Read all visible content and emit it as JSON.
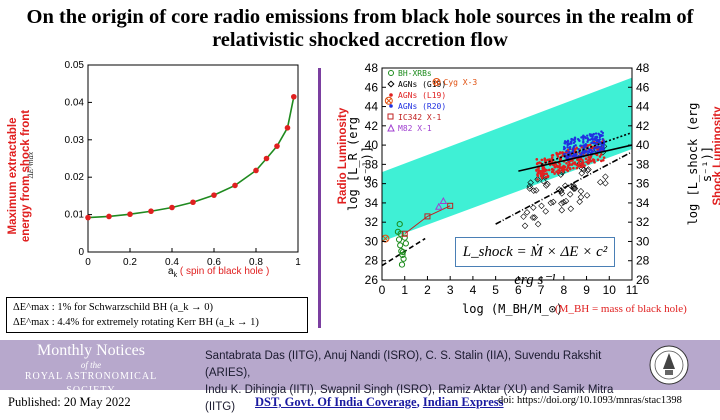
{
  "title": "On the origin of core radio emissions from black hole sources in the realm of relativistic shocked accretion flow",
  "left_chart": {
    "ylabel": "Maximum extractable energy from shock front",
    "ylabel_small": "ΔE^max",
    "xlabel_prefix": "a",
    "xlabel_sub": "k",
    "xlabel_note": "( spin of black hole )"
  },
  "chart_data": [
    {
      "type": "line",
      "title": "",
      "xlabel": "a_k ( spin of black hole )",
      "ylabel": "Maximum extractable energy from shock front (ΔE^max)",
      "xlim": [
        0,
        1
      ],
      "ylim": [
        0,
        0.05
      ],
      "xticks": [
        "0",
        "0.2",
        "0.4",
        "0.6",
        "0.8",
        "1"
      ],
      "yticks": [
        "0",
        "0.01",
        "0.02",
        "0.03",
        "0.04",
        "0.05"
      ],
      "series": [
        {
          "name": "ΔE^max",
          "x": [
            0,
            0.1,
            0.2,
            0.3,
            0.4,
            0.5,
            0.6,
            0.7,
            0.8,
            0.85,
            0.9,
            0.95,
            0.98
          ],
          "values": [
            0.0092,
            0.0095,
            0.0101,
            0.0109,
            0.0119,
            0.0133,
            0.0152,
            0.0178,
            0.0218,
            0.025,
            0.0283,
            0.0332,
            0.0415
          ]
        }
      ]
    },
    {
      "type": "scatter",
      "xlabel": "log (M_BH/M_⊙)",
      "ylabel_left": "log [L_R (erg s^-1)]",
      "ylabel_right": "log [L_shock (erg s^-1)]",
      "xlim": [
        0,
        11
      ],
      "ylim": [
        26,
        48
      ],
      "xticks": [
        "0",
        "1",
        "2",
        "3",
        "4",
        "5",
        "6",
        "7",
        "8",
        "9",
        "10",
        "11"
      ],
      "yticks": [
        "26",
        "28",
        "30",
        "32",
        "34",
        "36",
        "38",
        "40",
        "42",
        "44",
        "46",
        "48"
      ],
      "band": {
        "name": "shock luminosity range",
        "color": "#3ff0d5",
        "x": [
          0,
          11
        ],
        "lower": [
          30.0,
          39.6
        ],
        "upper": [
          37.2,
          47.0
        ]
      },
      "legend": [
        {
          "name": "BH-XRBs",
          "color": "#1a8a1a",
          "marker": "circle-open"
        },
        {
          "name": "AGNs (G19)",
          "color": "#000000",
          "marker": "diamond-open"
        },
        {
          "name": "AGNs (L19)",
          "color": "#e02020",
          "marker": "star"
        },
        {
          "name": "AGNs (R20)",
          "color": "#2030e0",
          "marker": "dot"
        },
        {
          "name": "IC342 X-1",
          "color": "#c02020",
          "marker": "square-open"
        },
        {
          "name": "M82 X-1",
          "color": "#a040d0",
          "marker": "triangle-open"
        }
      ],
      "annotation": "Cyg X-3",
      "series": [
        {
          "name": "BH-XRBs",
          "x": [
            0.7,
            0.75,
            0.8,
            0.85,
            0.9,
            0.95,
            1.0,
            0.78,
            0.88,
            1.05,
            0.92,
            0.82
          ],
          "values": [
            31.0,
            30.2,
            29.6,
            29.0,
            28.6,
            28.2,
            30.4,
            31.8,
            27.6,
            29.8,
            28.9,
            30.8
          ]
        },
        {
          "name": "IC342 X-1",
          "x": [
            1.0,
            2.0,
            3.0
          ],
          "values": [
            30.8,
            32.6,
            33.7
          ]
        },
        {
          "name": "M82 X-1",
          "x": [
            2.5,
            2.7
          ],
          "values": [
            33.6,
            34.2
          ]
        },
        {
          "name": "Cyg X-3",
          "x": [
            0.3
          ],
          "values": [
            44.6
          ]
        }
      ],
      "fit_lines": [
        {
          "name": "solid",
          "x": [
            6.0,
            11.0
          ],
          "values": [
            37.3,
            40.0
          ]
        },
        {
          "name": "dotted",
          "x": [
            7.0,
            11.0
          ],
          "values": [
            38.0,
            41.3
          ]
        },
        {
          "name": "dash-dot",
          "x": [
            5.0,
            11.0
          ],
          "values": [
            31.8,
            39.3
          ]
        },
        {
          "name": "dashed",
          "x": [
            0.0,
            1.9
          ],
          "values": [
            27.5,
            30.3
          ]
        }
      ]
    }
  ],
  "right_chart": {
    "ylabel_left_red": "Radio Luminosity",
    "ylabel_left_log": "log [L_R (erg s⁻¹)]",
    "ylabel_right_log": "log [L_shock (erg s⁻¹)]",
    "ylabel_right_red": "Shock Luminosity",
    "xlabel": "log (M_BH/M_⊙)",
    "xnote": "(M_BH = mass of black hole)",
    "formula": "L_shock = Ṁ × ΔE × c² erg s⁻¹"
  },
  "notes": [
    "ΔE^max : 1% for Schwarzschild BH (a_k → 0)",
    "ΔE^max : 4.4% for extremely rotating Kerr BH (a_k → 1)"
  ],
  "footer": {
    "journal_line1": "Monthly Notices",
    "journal_of": "of the",
    "journal_society": "ROYAL ASTRONOMICAL SOCIETY",
    "authors_line1": "Santabrata Das (IITG), Anuj Nandi (ISRO), C. S. Stalin (IIA), Suvendu Rakshit (ARIES),",
    "authors_line2": "Indu K. Dihingia (IITI), Swapnil Singh (ISRO), Ramiz Aktar (XU) and Samik Mitra (IITG)"
  },
  "bottom": {
    "published": "Published: 20 May 2022",
    "coverage_1": "DST, Govt. Of India Coverage",
    "coverage_sep": ", ",
    "coverage_2": "Indian Express",
    "doi": "doi: https://doi.org/10.1093/mnras/stac1398"
  }
}
